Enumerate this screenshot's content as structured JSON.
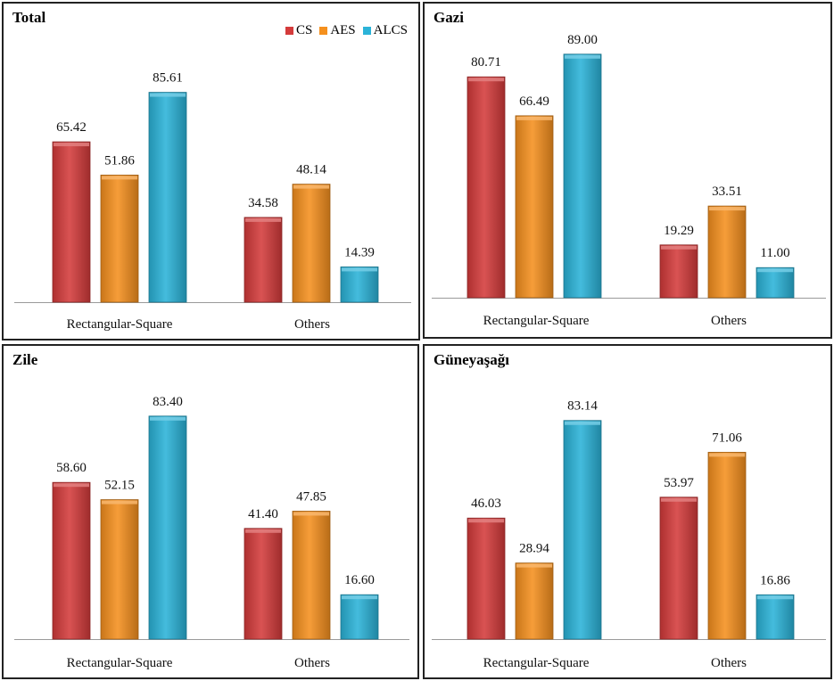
{
  "colors": {
    "CS": "#d43b3b",
    "AES": "#f5901e",
    "ALCS": "#2bb3d8"
  },
  "chart_data": [
    {
      "type": "bar",
      "title": "Total",
      "categories": [
        "Rectangular-Square",
        "Others"
      ],
      "series": [
        {
          "name": "CS",
          "values": [
            65.42,
            34.58
          ],
          "labels": [
            "65.42",
            "34.58"
          ]
        },
        {
          "name": "AES",
          "values": [
            51.86,
            48.14
          ],
          "labels": [
            "51.86",
            "48.14"
          ]
        },
        {
          "name": "ALCS",
          "values": [
            85.61,
            14.39
          ],
          "labels": [
            "85.61",
            "14.39"
          ]
        }
      ],
      "legend": "top-right",
      "ylim": [
        0,
        100
      ]
    },
    {
      "type": "bar",
      "title": "Gazi",
      "categories": [
        "Rectangular-Square",
        "Others"
      ],
      "series": [
        {
          "name": "CS",
          "values": [
            80.71,
            19.29
          ],
          "labels": [
            "80.71",
            "19.29"
          ]
        },
        {
          "name": "AES",
          "values": [
            66.49,
            33.51
          ],
          "labels": [
            "66.49",
            "33.51"
          ]
        },
        {
          "name": "ALCS",
          "values": [
            89.0,
            11.0
          ],
          "labels": [
            "89.00",
            "11.00"
          ]
        }
      ],
      "ylim": [
        0,
        100
      ]
    },
    {
      "type": "bar",
      "title": "Zile",
      "categories": [
        "Rectangular-Square",
        "Others"
      ],
      "series": [
        {
          "name": "CS",
          "values": [
            58.6,
            41.4
          ],
          "labels": [
            "58.60",
            "41.40"
          ]
        },
        {
          "name": "AES",
          "values": [
            52.15,
            47.85
          ],
          "labels": [
            "52.15",
            "47.85"
          ]
        },
        {
          "name": "ALCS",
          "values": [
            83.4,
            16.6
          ],
          "labels": [
            "83.40",
            "16.60"
          ]
        }
      ],
      "ylim": [
        0,
        100
      ]
    },
    {
      "type": "bar",
      "title": "Güneyaşağı",
      "categories": [
        "Rectangular-Square",
        "Others"
      ],
      "series": [
        {
          "name": "CS",
          "values": [
            46.03,
            53.97
          ],
          "labels": [
            "46.03",
            "53.97"
          ]
        },
        {
          "name": "AES",
          "values": [
            28.94,
            71.06
          ],
          "labels": [
            "28.94",
            "71.06"
          ]
        },
        {
          "name": "ALCS",
          "values": [
            83.14,
            16.86
          ],
          "labels": [
            "83.14",
            "16.86"
          ]
        }
      ],
      "ylim": [
        0,
        100
      ]
    }
  ]
}
